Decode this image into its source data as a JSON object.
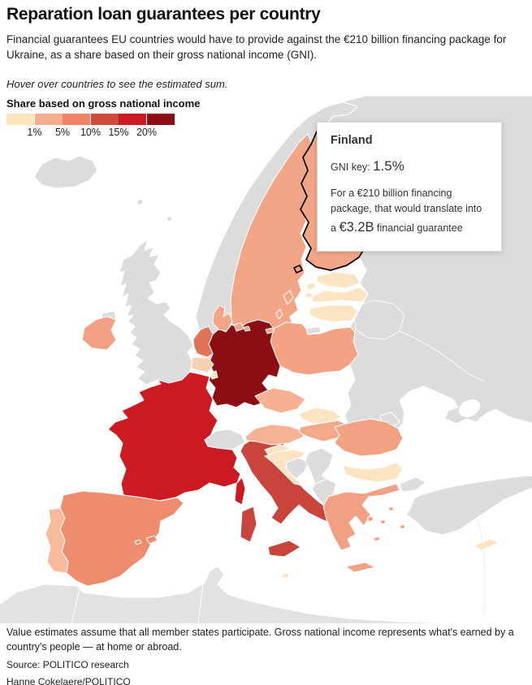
{
  "header": {
    "title": "Reparation loan guarantees per country",
    "subtitle": "Financial guarantees EU countries would have to provide against the €210 billion financing package for Ukraine, as a share based on their gross national income (GNI).",
    "note": "Hover over countries to see the estimated sum."
  },
  "legend": {
    "title": "Share based on gross national income",
    "colors": [
      "#FDE3BE",
      "#F5AE8D",
      "#EE8465",
      "#CC4B3B",
      "#CB1A24",
      "#8C0D16"
    ],
    "labels": [
      "1%",
      "5%",
      "10%",
      "15%",
      "20%"
    ]
  },
  "tooltip": {
    "country": "Finland",
    "gni_label": "GNI key: ",
    "gni_value": "1.5%",
    "body_prefix": "For a €210 billion financing package, that would translate into a ",
    "amount": "€3.2B",
    "body_suffix": " financial guarantee"
  },
  "footer": {
    "note": "Value estimates assume that all member states participate. Gross national income represents what's earned by a country's people — at home or abroad.",
    "source": "Source: POLITICO research",
    "byline": "Hanne Cokelaere/POLITICO"
  },
  "chart_data": {
    "type": "choropleth_map",
    "title": "Reparation loan guarantees per country",
    "scale_label": "Share based on gross national income",
    "scale_ticks_percent": [
      1,
      5,
      10,
      15,
      20
    ],
    "scale_colors": [
      "#FDE3BE",
      "#F5AE8D",
      "#EE8465",
      "#CC4B3B",
      "#CB1A24",
      "#8C0D16"
    ],
    "labeled_point": {
      "country": "Finland",
      "gni_key_percent": 1.5,
      "guarantee": "€3.2B",
      "package_total": "€210 billion"
    },
    "visual_bins_by_country": {
      "Germany": ">20%",
      "France": "15-20%",
      "Italy": "10-15%",
      "Netherlands": "5-10%",
      "Spain": "5-10%",
      "Sweden": "1-5%",
      "Finland": "1-5%",
      "Denmark": "1-5%",
      "Ireland": "1-5%",
      "Poland": "1-5%",
      "Czechia": "1-5%",
      "Austria": "1-5%",
      "Hungary": "1-5%",
      "Romania": "1-5%",
      "Greece": "1-5%",
      "Portugal": "1-5%",
      "Belgium": "1-5%",
      "Estonia": "<1%",
      "Latvia": "<1%",
      "Lithuania": "<1%",
      "Slovakia": "<1%",
      "Slovenia": "<1%",
      "Croatia": "<1%",
      "Bulgaria": "<1%",
      "Luxembourg": "<1%",
      "Cyprus": "<1%",
      "Malta": "<1%",
      "non_EU": "no data (gray)"
    }
  },
  "map": {
    "sea_color": "#FFFFFF",
    "border_color": "#FFFFFF",
    "highlight_stroke": "#000000",
    "countries": [
      {
        "id": "eastbloc",
        "name": "Russia-Belarus-Ukraine",
        "fill": "#DCDCDC",
        "member": false
      },
      {
        "id": "africa",
        "name": "North Africa",
        "fill": "#E2E2E2",
        "member": false
      },
      {
        "id": "turkey",
        "name": "Turkey",
        "fill": "#DCDCDC",
        "member": false
      },
      {
        "id": "iceland",
        "name": "Iceland",
        "fill": "#DCDCDC",
        "member": false
      },
      {
        "id": "norway",
        "name": "Norway",
        "fill": "#DCDCDC",
        "member": false
      },
      {
        "id": "uk",
        "name": "United Kingdom",
        "fill": "#DCDCDC",
        "member": false
      },
      {
        "id": "switzerland",
        "name": "Switzerland",
        "fill": "#DCDCDC",
        "member": false
      },
      {
        "id": "kaliningrad",
        "name": "Kaliningrad",
        "fill": "#DCDCDC",
        "member": false
      },
      {
        "id": "bosnia",
        "name": "Bosnia",
        "fill": "#DCDCDC",
        "member": false
      },
      {
        "id": "serbia",
        "name": "Serbia",
        "fill": "#DCDCDC",
        "member": false
      },
      {
        "id": "albania",
        "name": "Albania-North-Macedonia",
        "fill": "#DCDCDC",
        "member": false
      },
      {
        "id": "moldova",
        "name": "Moldova",
        "fill": "#DCDCDC",
        "member": false
      },
      {
        "id": "sweden",
        "name": "Sweden",
        "fill": "#F3A687",
        "member": true
      },
      {
        "id": "finland",
        "name": "Finland",
        "fill": "#F3A687",
        "member": true,
        "highlighted": true
      },
      {
        "id": "denmark",
        "name": "Denmark",
        "fill": "#F3A687",
        "member": true
      },
      {
        "id": "estonia",
        "name": "Estonia",
        "fill": "#FBE4C1",
        "member": true
      },
      {
        "id": "latvia",
        "name": "Latvia",
        "fill": "#FBE4C1",
        "member": true
      },
      {
        "id": "lithuania",
        "name": "Lithuania",
        "fill": "#FBE4C1",
        "member": true
      },
      {
        "id": "poland",
        "name": "Poland",
        "fill": "#F3A284",
        "member": true
      },
      {
        "id": "germany",
        "name": "Germany",
        "fill": "#8C0E15",
        "member": true
      },
      {
        "id": "netherlands",
        "name": "Netherlands",
        "fill": "#E07258",
        "member": true
      },
      {
        "id": "belgium",
        "name": "Belgium",
        "fill": "#F9CFB3",
        "member": true
      },
      {
        "id": "luxembourg",
        "name": "Luxembourg",
        "fill": "#FBE4C1",
        "member": true
      },
      {
        "id": "france",
        "name": "France",
        "fill": "#CC1A23",
        "member": true
      },
      {
        "id": "ireland",
        "name": "Ireland",
        "fill": "#F2A083",
        "member": true
      },
      {
        "id": "spain",
        "name": "Spain",
        "fill": "#EE8C6E",
        "member": true
      },
      {
        "id": "portugal",
        "name": "Portugal",
        "fill": "#F7BB9B",
        "member": true
      },
      {
        "id": "italy",
        "name": "Italy",
        "fill": "#C8453B",
        "member": true
      },
      {
        "id": "austria",
        "name": "Austria",
        "fill": "#F6B294",
        "member": true
      },
      {
        "id": "czechia",
        "name": "Czechia",
        "fill": "#F6B092",
        "member": true
      },
      {
        "id": "slovakia",
        "name": "Slovakia",
        "fill": "#FBE4C1",
        "member": true
      },
      {
        "id": "hungary",
        "name": "Hungary",
        "fill": "#F3AA8B",
        "member": true
      },
      {
        "id": "slovenia",
        "name": "Slovenia",
        "fill": "#FBE4C1",
        "member": true
      },
      {
        "id": "croatia",
        "name": "Croatia",
        "fill": "#FBE4C1",
        "member": true
      },
      {
        "id": "romania",
        "name": "Romania",
        "fill": "#F2A183",
        "member": true
      },
      {
        "id": "bulgaria",
        "name": "Bulgaria",
        "fill": "#FBE4C1",
        "member": true
      },
      {
        "id": "greece",
        "name": "Greece",
        "fill": "#F1A083",
        "member": true
      },
      {
        "id": "cyprus",
        "name": "Cyprus",
        "fill": "#FBE4C1",
        "member": true
      },
      {
        "id": "malta",
        "name": "Malta",
        "fill": "#FBE4C1",
        "member": true
      }
    ]
  }
}
